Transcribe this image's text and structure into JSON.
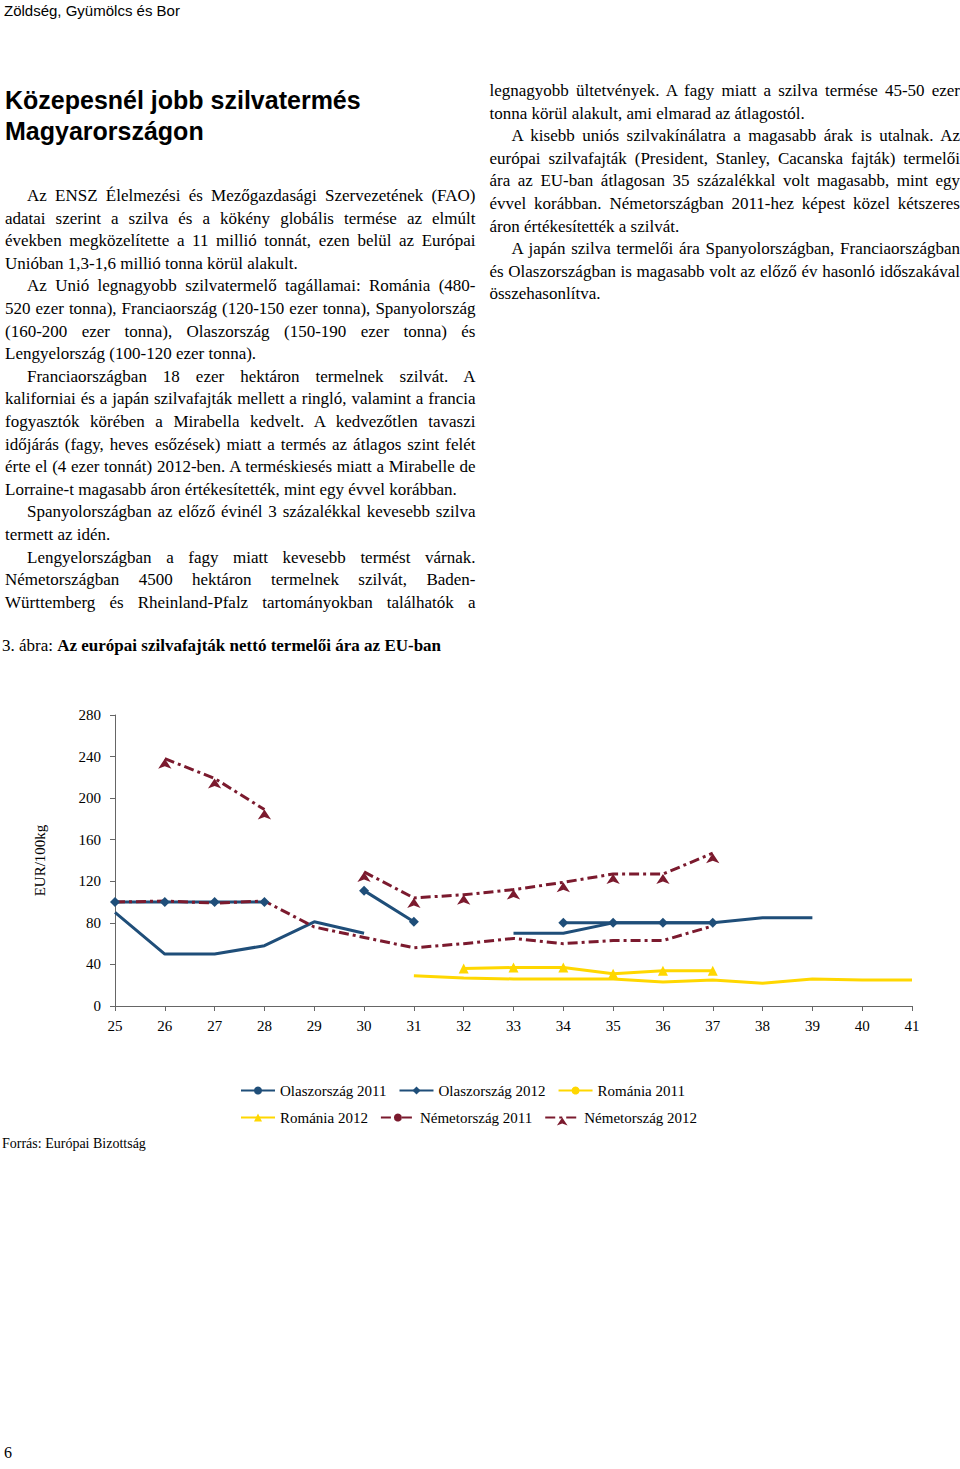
{
  "header": "Zöldség, Gyümölcs és Bor",
  "article": {
    "title": [
      "Közepesnél jobb szilvatermés",
      "Magyarországon"
    ],
    "paragraphs": [
      "Az ENSZ Élelmezési és Mezőgazdasági Szervezetének (FAO) adatai szerint a szilva és a kökény globális termése az elmúlt években megközelítette a 11 millió tonnát, ezen belül az Európai Unióban 1,3-1,6 millió tonna körül alakult.",
      "Az Unió legnagyobb szilvatermelő tagállamai: Románia (480-520 ezer tonna), Franciaország (120-150 ezer tonna), Spanyolország (160-200 ezer tonna), Olaszország (150-190 ezer tonna) és Lengyelország (100-120 ezer tonna).",
      "Franciaországban 18 ezer hektáron termelnek szilvát. A kaliforniai és a japán szilvafajták mellett a ringló, valamint a francia fogyasztók körében a Mirabella kedvelt. A kedvezőtlen tavaszi időjárás (fagy, heves esőzések) miatt a termés az átlagos szint felét érte el (4 ezer tonnát) 2012-ben. A terméskiesés miatt a Mirabelle de Lorraine-t magasabb áron értékesítették, mint egy évvel korábban.",
      "Spanyolországban az előző évinél 3 százalékkal kevesebb szilva termett az idén.",
      "Lengyelországban a fagy miatt kevesebb termést várnak. Németországban 4500 hektáron termelnek szilvát, Baden-Württemberg és Rheinland-Pfalz tartományokban találhatók a legnagyobb ültetvények. A fagy miatt a szilva termése 45-50 ezer tonna körül alakult, ami elmarad az átlagostól.",
      "A kisebb uniós szilvakínálatra a magasabb árak is utalnak. Az európai szilvafajták (President, Stanley, Cacanska fajták) termelői ára az EU-ban átlagosan 35 százalékkal volt magasabb, mint egy évvel korábban. Németországban 2011-hez képest közel kétszeres áron értékesítették a szilvát.",
      "A japán szilva termelői ára Spanyolországban, Franciaországban és Olaszországban is magasabb volt az előző év hasonló időszakával összehasonlítva."
    ]
  },
  "figure": {
    "caption_number": "3. ábra:",
    "caption": "Az európai szilvafajták nettó termelői ára az EU-ban",
    "source": "Forrás: Európai Bizottság"
  },
  "chart_data": {
    "type": "line",
    "y_label": "EUR/100kg",
    "categories": [
      "25",
      "26",
      "27",
      "28",
      "29",
      "30",
      "31",
      "32",
      "33",
      "34",
      "35",
      "36",
      "37",
      "38",
      "39",
      "40",
      "41"
    ],
    "series": [
      {
        "name": "Olaszország 2011",
        "color": "#1f4e79",
        "line_style": "solid",
        "marker": "none",
        "values": [
          90,
          50,
          50,
          58,
          81,
          70,
          null,
          null,
          70,
          70,
          80,
          80,
          80,
          85,
          85,
          null,
          null
        ]
      },
      {
        "name": "Olaszország 2012",
        "color": "#1f4e79",
        "line_style": "solid",
        "marker": "diamond",
        "values": [
          100,
          100,
          100,
          100,
          null,
          111,
          81,
          null,
          null,
          80,
          80,
          80,
          80,
          null,
          null,
          null,
          null
        ]
      },
      {
        "name": "Románia 2011",
        "color": "#ffd700",
        "line_style": "solid",
        "marker": "none",
        "values": [
          null,
          null,
          null,
          null,
          null,
          null,
          29,
          27,
          26,
          26,
          26,
          23,
          25,
          22,
          26,
          25,
          25
        ]
      },
      {
        "name": "Románia 2012",
        "color": "#ffd700",
        "line_style": "solid",
        "marker": "triangle",
        "values": [
          null,
          null,
          null,
          null,
          null,
          null,
          null,
          36,
          37,
          37,
          31,
          34,
          34,
          null,
          null,
          null,
          null
        ]
      },
      {
        "name": "Németország 2011",
        "color": "#7b1a2e",
        "line_style": "dashdot",
        "marker": "none",
        "values": [
          100,
          101,
          99,
          101,
          76,
          66,
          56,
          60,
          65,
          60,
          63,
          63,
          77,
          null,
          null,
          null,
          null
        ]
      },
      {
        "name": "Németország 2012",
        "color": "#7b1a2e",
        "line_style": "dashdot",
        "marker": "arrow",
        "values": [
          null,
          238,
          219,
          189,
          null,
          129,
          104,
          107,
          112,
          119,
          127,
          127,
          147,
          null,
          null,
          null,
          null
        ]
      }
    ],
    "ylim": [
      0,
      280
    ],
    "yticks": [
      0,
      40,
      80,
      120,
      160,
      200,
      240,
      280
    ],
    "grid": false,
    "legend": "bottom"
  },
  "page_number": "6"
}
